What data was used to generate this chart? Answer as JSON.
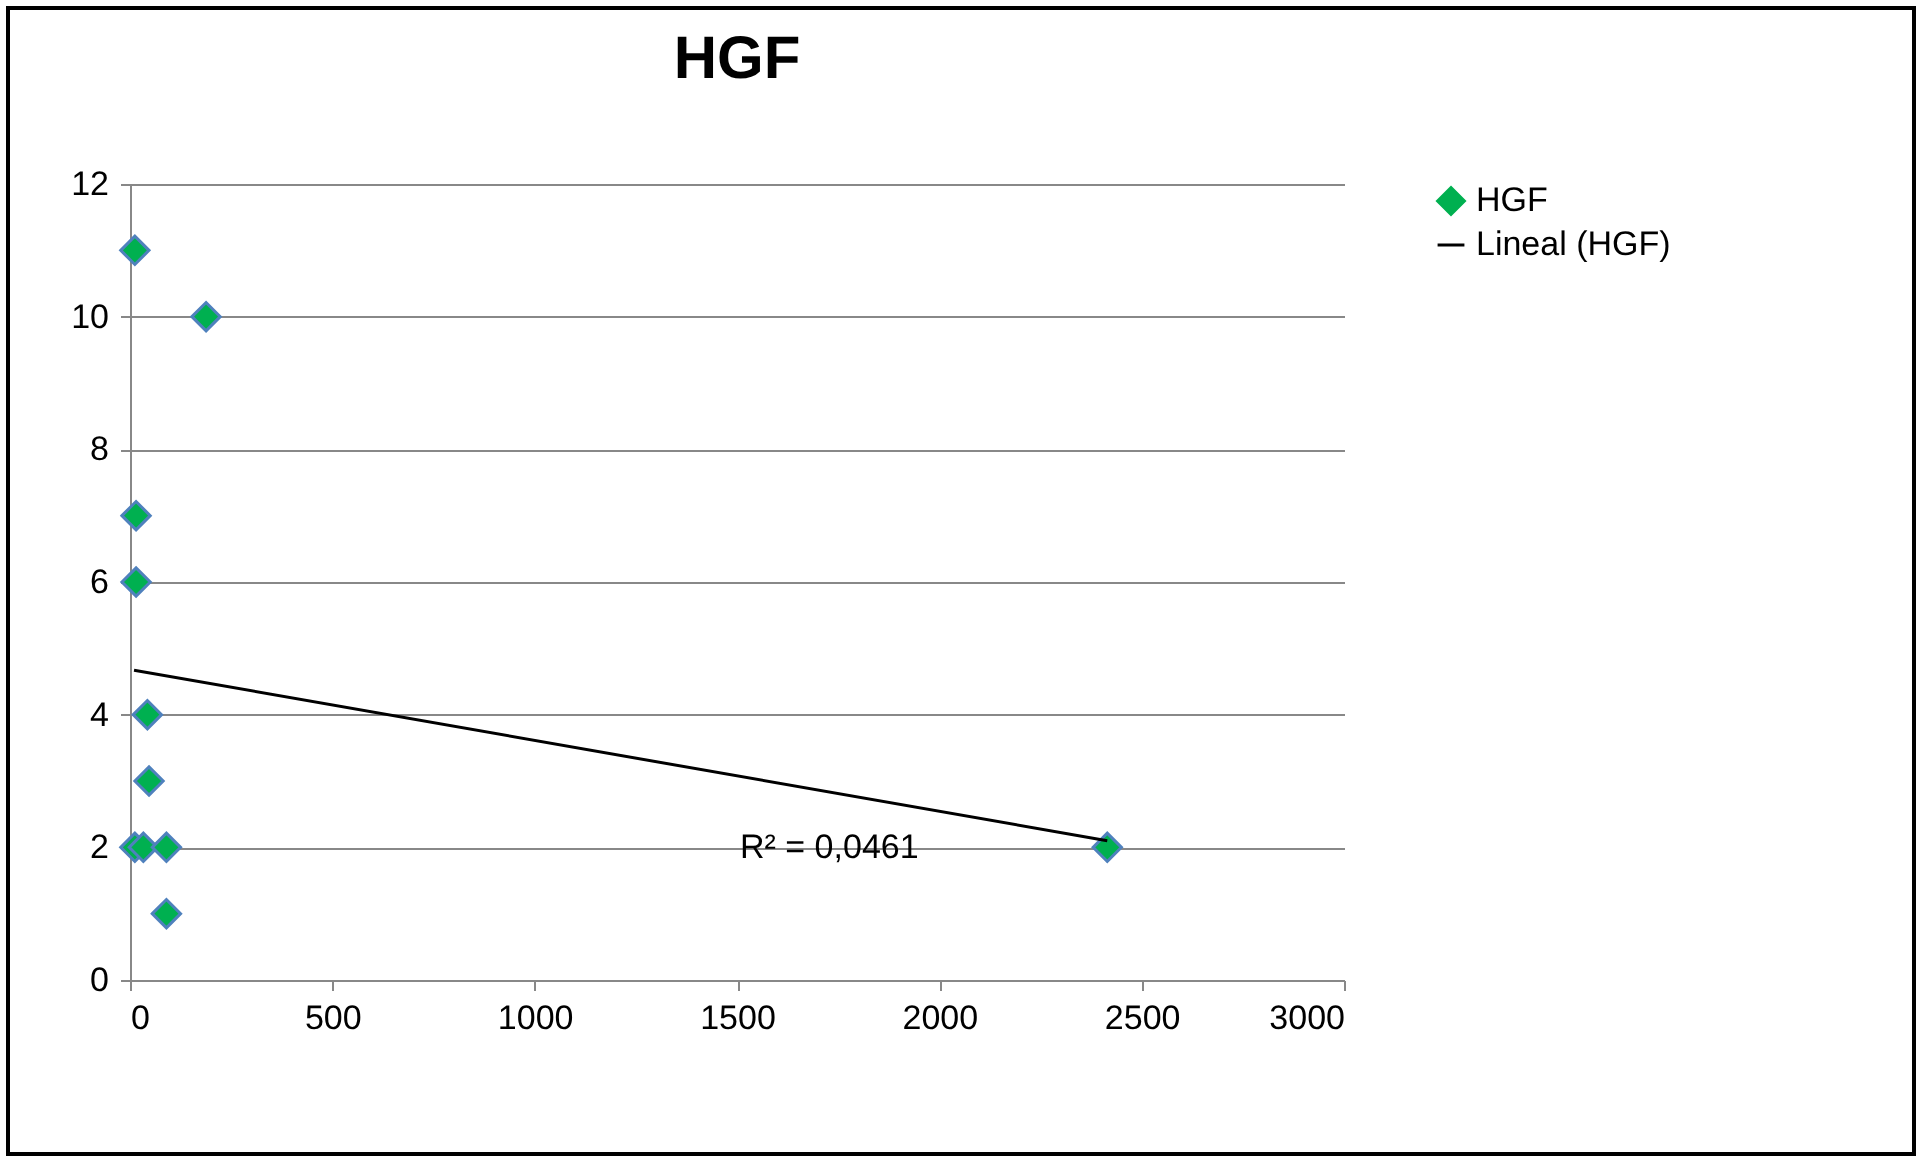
{
  "chart_data": {
    "type": "scatter",
    "title": "HGF",
    "xlim": [
      0,
      3000
    ],
    "xticks": [
      0,
      500,
      1000,
      1500,
      2000,
      2500,
      3000
    ],
    "ylim": [
      0,
      12
    ],
    "yticks": [
      0,
      2,
      4,
      6,
      8,
      10,
      12
    ],
    "grid": "y",
    "legend": "right",
    "series": [
      {
        "name": "HGF",
        "color": "#00b050",
        "marker": "diamond",
        "x": [
          12,
          188,
          15,
          15,
          43,
          47,
          12,
          33,
          90,
          90,
          2415
        ],
        "values": [
          11,
          10,
          7,
          6,
          4,
          3,
          2,
          2,
          2,
          1,
          2
        ]
      },
      {
        "name": "Lineal (HGF)",
        "type": "line",
        "color": "#000000",
        "marker": "none",
        "line_style": "solid",
        "x": [
          10,
          2415
        ],
        "values": [
          4.67,
          2.1
        ]
      }
    ],
    "annotations": [
      "R² = 0,0461"
    ]
  }
}
